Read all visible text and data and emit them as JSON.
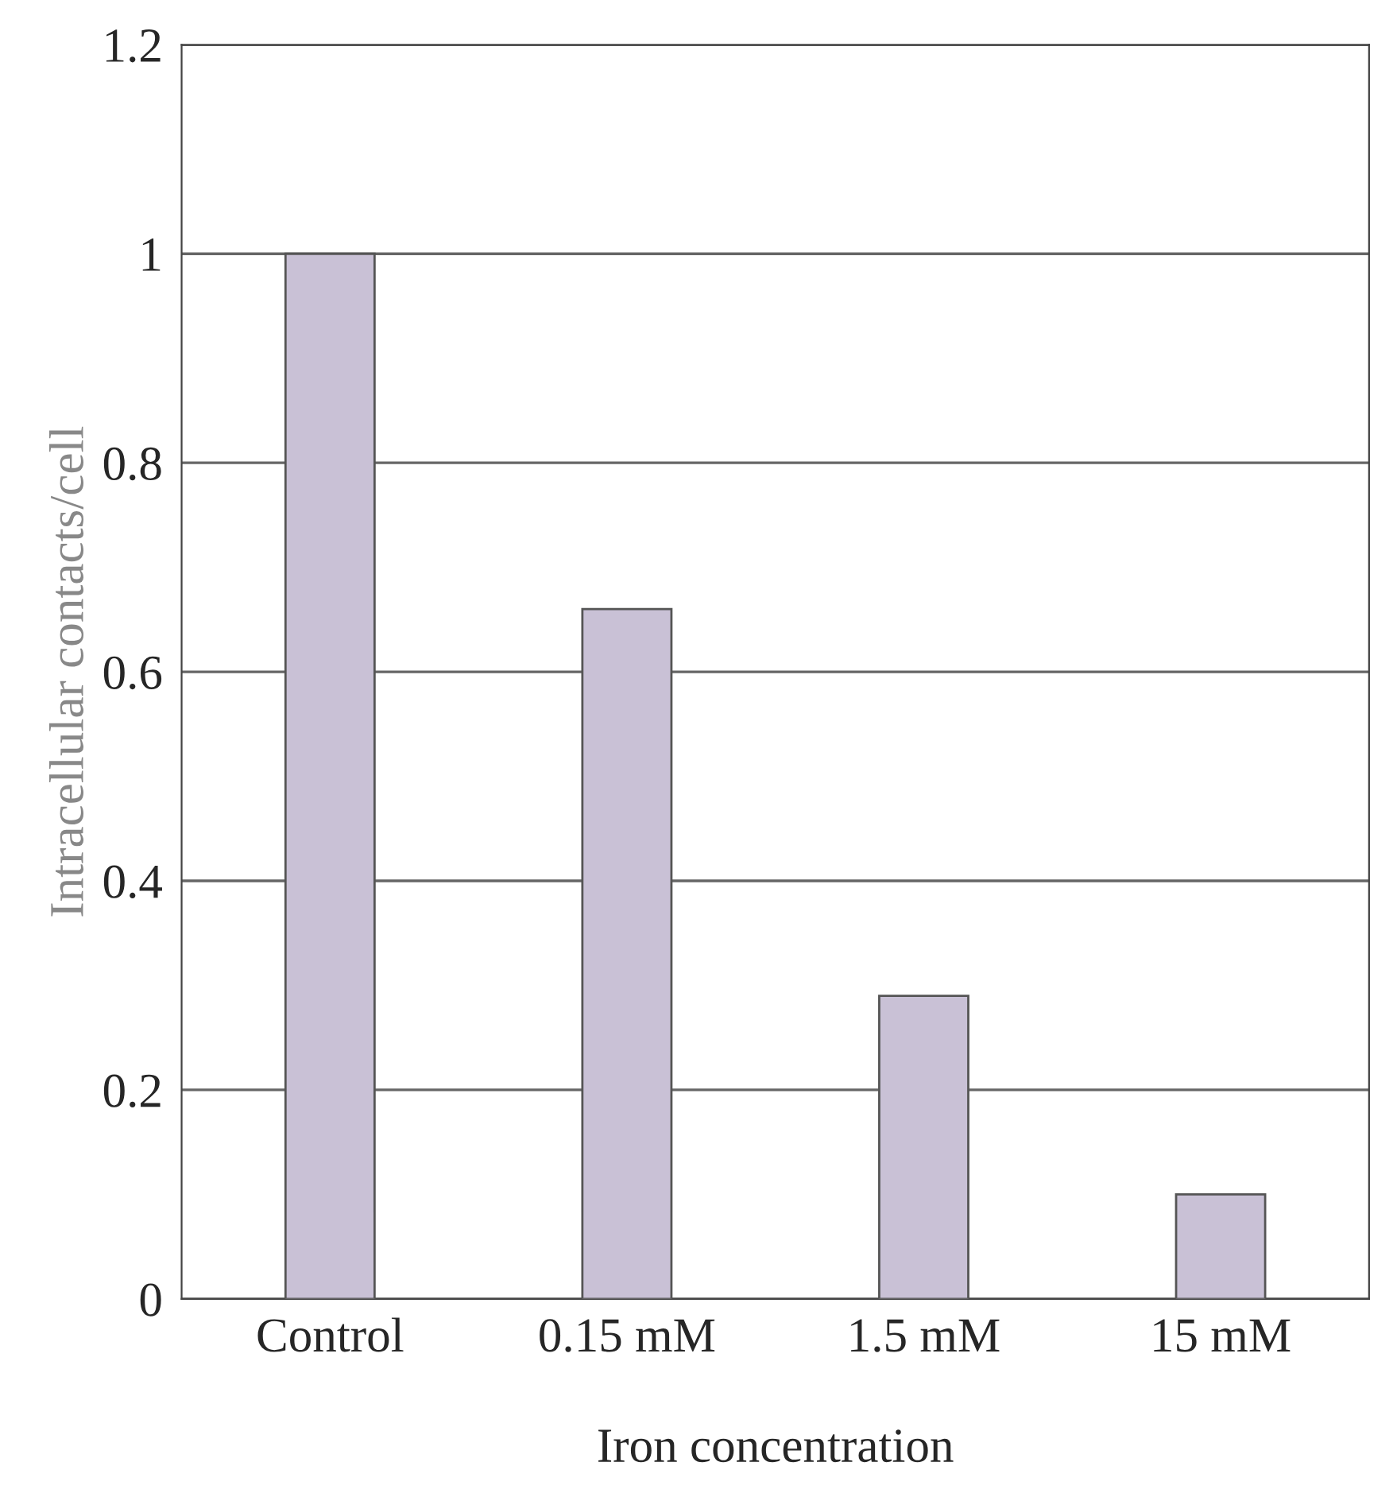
{
  "chart_data": {
    "type": "bar",
    "xlabel": "Iron concentration",
    "ylabel": "Intracellular contacts/cell",
    "categories": [
      "Control",
      "0.15 mM",
      "1.5 mM",
      "15 mM"
    ],
    "values": [
      1.0,
      0.66,
      0.29,
      0.1
    ],
    "color": "#c9c1d6",
    "ylim": [
      0,
      1.2
    ],
    "yticks": [
      {
        "value": 0,
        "label": "0"
      },
      0.2,
      0.4,
      0.6,
      0.8,
      {
        "value": 1,
        "label": "1"
      },
      1.2
    ],
    "grid": "y"
  }
}
